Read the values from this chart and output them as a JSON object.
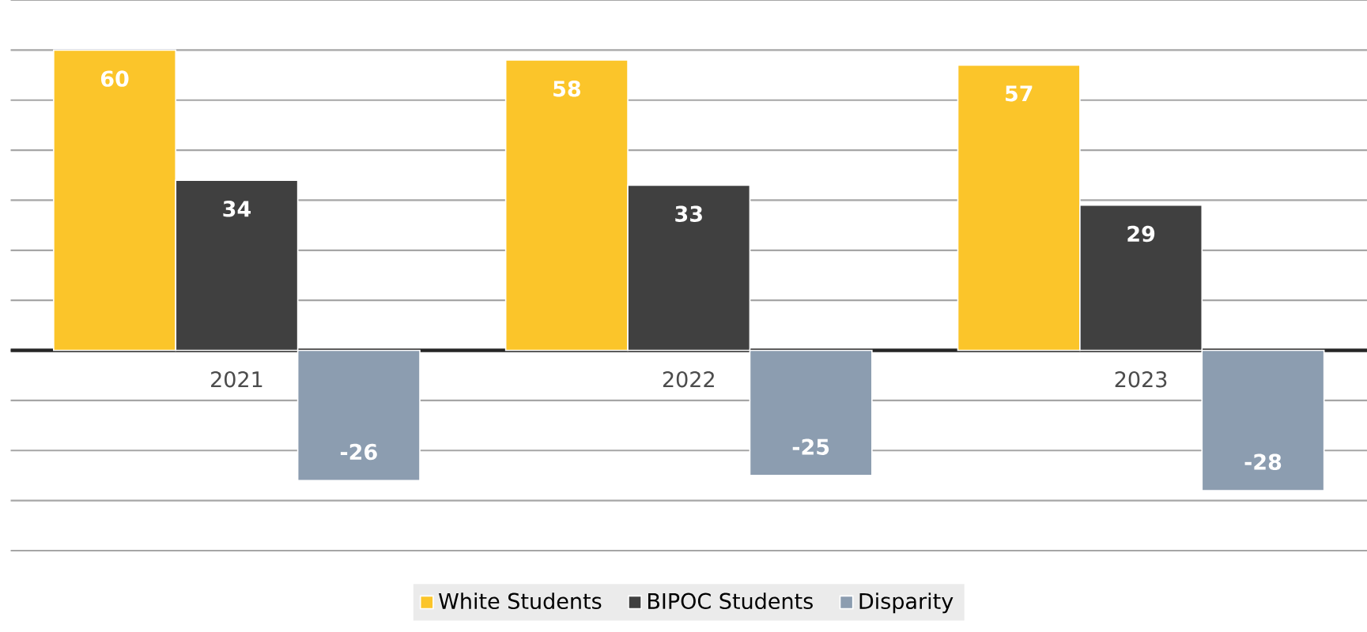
{
  "chart_data": {
    "type": "bar",
    "categories": [
      "2021",
      "2022",
      "2023"
    ],
    "series": [
      {
        "name": "White Students",
        "color": "#fbc52a",
        "values": [
          60,
          58,
          57
        ]
      },
      {
        "name": "BIPOC Students",
        "color": "#404040",
        "values": [
          34,
          33,
          29
        ]
      },
      {
        "name": "Disparity",
        "color": "#8c9db0",
        "values": [
          -26,
          -25,
          -28
        ]
      }
    ],
    "ylim": [
      -40,
      70
    ],
    "yticks": [
      {
        "value": -40,
        "label": null
      },
      {
        "value": -30,
        "label": null
      },
      {
        "value": -20,
        "label": null
      },
      {
        "value": -10,
        "label": null
      },
      {
        "value": 0,
        "label": null
      },
      {
        "value": 10,
        "label": null
      },
      {
        "value": 20,
        "label": null
      },
      {
        "value": 30,
        "label": null
      },
      {
        "value": 40,
        "label": null
      },
      {
        "value": 50,
        "label": null
      },
      {
        "value": 60,
        "label": null
      },
      {
        "value": 70,
        "label": null
      }
    ],
    "tick_labels": "x",
    "grid": "y",
    "legend": "bottom",
    "data_labels": true
  }
}
